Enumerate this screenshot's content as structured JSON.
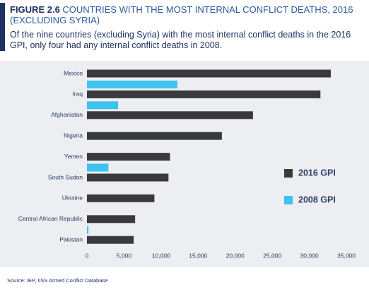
{
  "chart_data": {
    "type": "bar",
    "orientation": "horizontal",
    "figure_label": "FIGURE 2.6",
    "title": "COUNTRIES WITH THE MOST INTERNAL CONFLICT DEATHS, 2016 (EXCLUDING SYRIA)",
    "subtitle": "Of the nine countries (excluding Syria) with the most internal conflict deaths in the 2016 GPI, only four had any internal conflict deaths in 2008.",
    "source": "Source: IEP, IISS Armed Conflict Database",
    "categories": [
      "Mexico",
      "Iraq",
      "Afghanistan",
      "Nigeria",
      "Yemen",
      "South Sudan",
      "Ukraine",
      "Central African Republic",
      "Pakistan"
    ],
    "series": [
      {
        "name": "2016 GPI",
        "color": "#3a3a3c",
        "values": [
          32900,
          31500,
          22400,
          18200,
          11200,
          11000,
          9100,
          6500,
          6300
        ]
      },
      {
        "name": "2008 GPI",
        "color": "#3ec3ef",
        "values": [
          null,
          12200,
          4200,
          null,
          null,
          2900,
          null,
          null,
          200
        ]
      }
    ],
    "xlim": [
      0,
      35000
    ],
    "xticks": [
      0,
      {
        "value": 5000,
        "label": "5,000"
      },
      {
        "value": 10000,
        "label": "10,000"
      },
      {
        "value": 15000,
        "label": "15,000"
      },
      {
        "value": 20000,
        "label": "20,000"
      },
      {
        "value": 25000,
        "label": "25,000"
      },
      {
        "value": 30000,
        "label": "30,000"
      },
      {
        "value": 35000,
        "label": "35,000"
      }
    ],
    "grid": false
  }
}
